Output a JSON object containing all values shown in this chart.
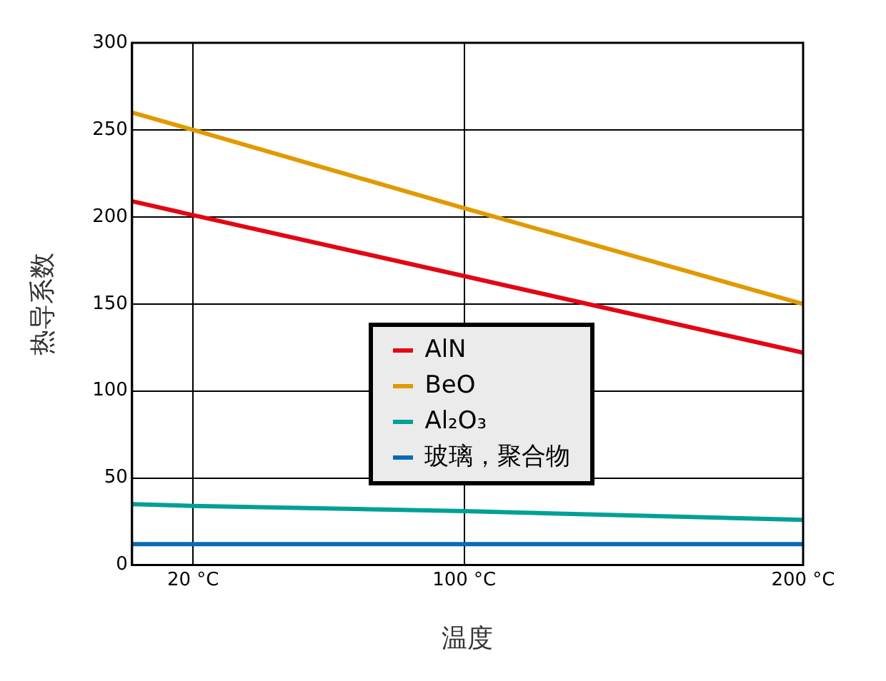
{
  "chart_data": {
    "type": "line",
    "xlabel": "温度",
    "ylabel": "热导系数",
    "x": [
      2,
      20,
      100,
      200
    ],
    "xlim": [
      2,
      200
    ],
    "xticks": [
      {
        "value": 20,
        "label": "20 °C"
      },
      {
        "value": 100,
        "label": "100 °C"
      },
      {
        "value": 200,
        "label": "200 °C"
      }
    ],
    "ylim": [
      0,
      300
    ],
    "yticks": [
      0,
      50,
      100,
      150,
      200,
      250,
      300
    ],
    "grid": true,
    "legend": "center",
    "marker": "none",
    "line_style": "solid",
    "series": [
      {
        "name": "AlN",
        "color": "#e30613",
        "values": [
          209,
          201,
          166,
          122
        ]
      },
      {
        "name": "BeO",
        "color": "#e09a00",
        "values": [
          260,
          250,
          205,
          150
        ]
      },
      {
        "name": "Al₂O₃",
        "color": "#00a096",
        "values": [
          35,
          34,
          31,
          26
        ]
      },
      {
        "name": "玻璃，聚合物",
        "color": "#0a6ab4",
        "values": [
          12,
          12,
          12,
          12
        ]
      }
    ]
  }
}
